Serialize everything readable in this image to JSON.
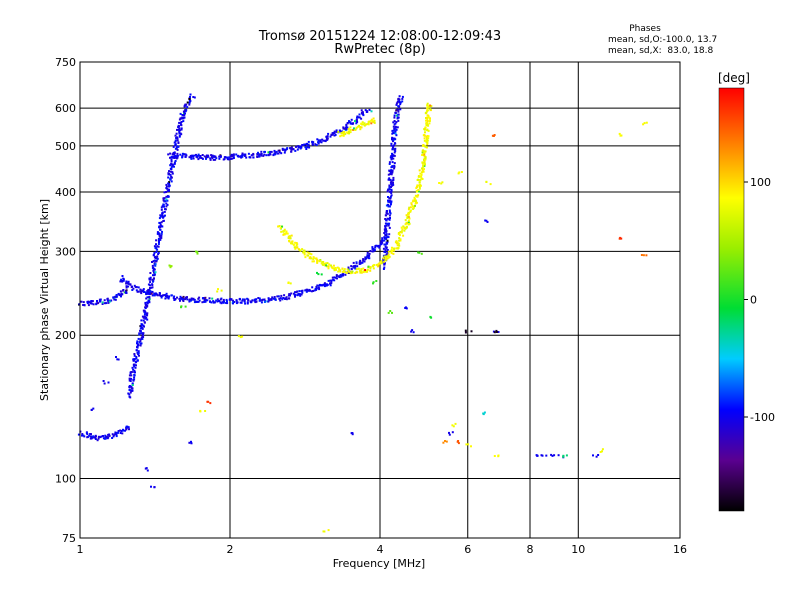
{
  "chart_data": {
    "type": "scatter",
    "title": "Tromsø 20151224 12:08:00-12:09:43",
    "subtitle": "RwPretec (8p)",
    "xlabel": "Frequency [MHz]",
    "ylabel": "Stationary phase Virtual Height [km]",
    "x_scale": "log",
    "y_scale": "log",
    "xlim": [
      1,
      16
    ],
    "ylim": [
      75,
      750
    ],
    "x_ticks": [
      1,
      2,
      4,
      6,
      8,
      10,
      16
    ],
    "y_ticks": [
      75,
      100,
      200,
      300,
      400,
      500,
      600,
      750
    ],
    "grid": true,
    "phase_info": {
      "title": "Phases",
      "line_o": "mean, sd,O:-100.0, 13.7",
      "line_x": "mean, sd,X:  83.0, 18.8"
    },
    "colorbar": {
      "label": "[deg]",
      "range": [
        -180,
        180
      ],
      "ticks": [
        100,
        0,
        -100
      ]
    },
    "series": [
      {
        "mode": "O",
        "phase": -100,
        "traces": [
          {
            "x": [
              1.0,
              1.04,
              1.08,
              1.12,
              1.16,
              1.2,
              1.25
            ],
            "y": [
              235,
              235,
              236,
              237,
              240,
              245,
              250
            ]
          },
          {
            "x": [
              1.0,
              1.05,
              1.1,
              1.15,
              1.2,
              1.25
            ],
            "y": [
              125,
              123,
              122,
              123,
              126,
              130
            ]
          },
          {
            "x": [
              1.2,
              1.25,
              1.3,
              1.38,
              1.45,
              1.55,
              1.65,
              1.8,
              2.0,
              2.2,
              2.5,
              2.8,
              3.1,
              3.4,
              3.7,
              4.0,
              4.1
            ],
            "y": [
              265,
              255,
              250,
              246,
              243,
              241,
              239,
              238,
              237,
              237,
              240,
              247,
              257,
              272,
              290,
              315,
              330
            ]
          },
          {
            "x": [
              1.5,
              1.6,
              1.7,
              1.8,
              1.9,
              2.0,
              2.2,
              2.5,
              2.8,
              3.1,
              3.4,
              3.6,
              3.7,
              3.8
            ],
            "y": [
              480,
              478,
              476,
              475,
              475,
              476,
              480,
              488,
              500,
              520,
              550,
              575,
              590,
              600
            ]
          },
          {
            "x": [
              1.25,
              1.28,
              1.32,
              1.36,
              1.4,
              1.44,
              1.48,
              1.52,
              1.56,
              1.6,
              1.64,
              1.68
            ],
            "y": [
              150,
              175,
              200,
              235,
              280,
              330,
              390,
              450,
              520,
              580,
              620,
              640
            ]
          },
          {
            "x": [
              4.05,
              4.1,
              4.15,
              4.2,
              4.25,
              4.3,
              4.35,
              4.4
            ],
            "y": [
              280,
              320,
              380,
              440,
              520,
              580,
              620,
              640
            ]
          }
        ],
        "points": [
          [
            1.06,
            140
          ],
          [
            1.12,
            160
          ],
          [
            1.18,
            180
          ],
          [
            1.35,
            105
          ],
          [
            1.4,
            96
          ],
          [
            1.65,
            120
          ],
          [
            3.5,
            125
          ],
          [
            4.5,
            230
          ],
          [
            4.6,
            205
          ],
          [
            5.5,
            125
          ],
          [
            6.5,
            350
          ],
          [
            6.8,
            205
          ],
          [
            8.2,
            112
          ],
          [
            8.5,
            112
          ],
          [
            8.8,
            112
          ],
          [
            9.2,
            112
          ],
          [
            10.8,
            112
          ]
        ]
      },
      {
        "mode": "X",
        "phase": 83,
        "traces": [
          {
            "x": [
              2.5,
              2.7,
              2.9,
              3.1,
              3.3,
              3.5,
              3.7,
              3.9,
              4.1,
              4.3,
              4.5,
              4.7,
              4.8,
              4.9,
              5.0
            ],
            "y": [
              340,
              310,
              292,
              282,
              276,
              274,
              275,
              280,
              290,
              310,
              345,
              390,
              430,
              500,
              620
            ]
          },
          {
            "x": [
              3.3,
              3.45,
              3.6,
              3.75,
              3.9
            ],
            "y": [
              530,
              540,
              550,
              560,
              570
            ]
          }
        ],
        "points": [
          [
            5.3,
            420
          ],
          [
            5.8,
            440
          ],
          [
            6.6,
            420
          ],
          [
            1.9,
            250
          ],
          [
            2.1,
            200
          ],
          [
            2.6,
            260
          ],
          [
            5.6,
            130
          ],
          [
            6.0,
            118
          ],
          [
            6.8,
            112
          ],
          [
            11.0,
            115
          ],
          [
            12.0,
            530
          ],
          [
            13.5,
            560
          ],
          [
            3.1,
            78
          ],
          [
            1.75,
            140
          ]
        ]
      },
      {
        "mode": "other",
        "points": [
          {
            "x": 6.8,
            "y": 530,
            "phase": 150
          },
          {
            "x": 6.0,
            "y": 205,
            "phase": -170
          },
          {
            "x": 6.8,
            "y": 205,
            "phase": -170
          },
          {
            "x": 12.2,
            "y": 320,
            "phase": 165
          },
          {
            "x": 13.5,
            "y": 295,
            "phase": 140
          },
          {
            "x": 5.4,
            "y": 120,
            "phase": 130
          },
          {
            "x": 5.75,
            "y": 120,
            "phase": 150
          },
          {
            "x": 1.8,
            "y": 145,
            "phase": 160
          },
          {
            "x": 4.8,
            "y": 300,
            "phase": 20
          },
          {
            "x": 3.9,
            "y": 260,
            "phase": 10
          },
          {
            "x": 1.6,
            "y": 230,
            "phase": 15
          },
          {
            "x": 1.7,
            "y": 300,
            "phase": 30
          },
          {
            "x": 5.0,
            "y": 220,
            "phase": 0
          },
          {
            "x": 4.2,
            "y": 225,
            "phase": 25
          },
          {
            "x": 6.5,
            "y": 138,
            "phase": -40
          },
          {
            "x": 9.4,
            "y": 112,
            "phase": -20
          },
          {
            "x": 3.0,
            "y": 270,
            "phase": -10
          },
          {
            "x": 1.5,
            "y": 280,
            "phase": 40
          }
        ]
      }
    ]
  }
}
